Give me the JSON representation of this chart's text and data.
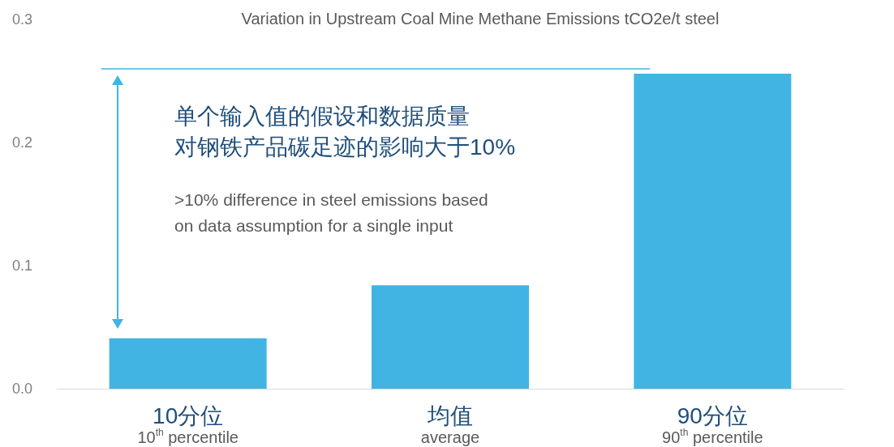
{
  "chart_data": {
    "type": "bar",
    "title": "Variation in Upstream Coal Mine Methane Emissions tCO2e/t steel",
    "categories": [
      "10分位\n10$^{th}$ percentile",
      "均值\naverage",
      "90分位\n90$^{th}$ percentile"
    ],
    "values": [
      0.041,
      0.084,
      0.256
    ],
    "color": "#41b4e4",
    "ylim": [
      0,
      0.3
    ],
    "yticks": [
      {
        "value": 0,
        "label": "0.0"
      },
      {
        "value": 0.1,
        "label": "0.1"
      },
      {
        "value": 0.2,
        "label": "0.2"
      },
      {
        "value": 0.3,
        "label": "0.3"
      }
    ],
    "grid": false,
    "ref_lines": [
      {
        "axis": "y",
        "value": 0.26,
        "color": "#41b4e4"
      }
    ],
    "annotations": [
      "单个输入值的假设和数据质量",
      "对钢铁产品碳足迹的影响大于10%",
      ">10% difference in steel emissions based\non data assumption for a single input"
    ]
  }
}
